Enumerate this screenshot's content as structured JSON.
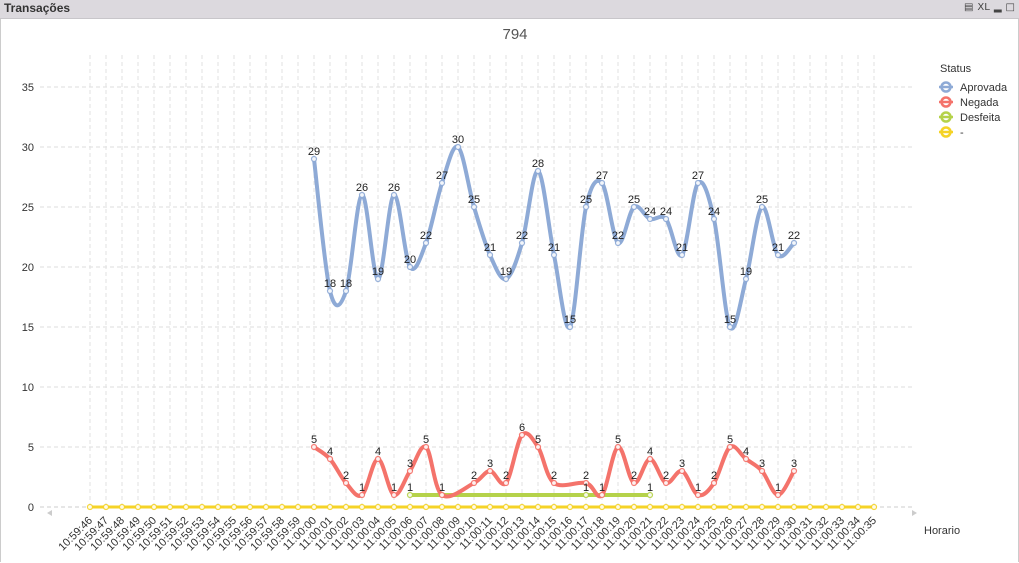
{
  "window": {
    "title": "Transações",
    "icons": [
      "print-icon",
      "xl-icon",
      "minimize-icon",
      "maximize-icon"
    ],
    "xl_label": "XL"
  },
  "chart_data": {
    "type": "line",
    "title": "794",
    "xlabel": "Horario",
    "ylabel": "",
    "ylim": [
      0,
      35
    ],
    "yticks": [
      0,
      5,
      10,
      15,
      20,
      25,
      30,
      35
    ],
    "grid": true,
    "legend": {
      "title": "Status",
      "placement": "top-right"
    },
    "categories": [
      "10:59:46",
      "10:59:47",
      "10:59:48",
      "10:59:49",
      "10:59:50",
      "10:59:51",
      "10:59:52",
      "10:59:53",
      "10:59:54",
      "10:59:55",
      "10:59:56",
      "10:59:57",
      "10:59:58",
      "10:59:59",
      "11:00:00",
      "11:00:01",
      "11:00:02",
      "11:00:03",
      "11:00:04",
      "11:00:05",
      "11:00:06",
      "11:00:07",
      "11:00:08",
      "11:00:09",
      "11:00:10",
      "11:00:11",
      "11:00:12",
      "11:00:13",
      "11:00:14",
      "11:00:15",
      "11:00:16",
      "11:00:17",
      "11:00:18",
      "11:00:19",
      "11:00:20",
      "11:00:21",
      "11:00:22",
      "11:00:23",
      "11:00:24",
      "11:00:25",
      "11:00:26",
      "11:00:27",
      "11:00:28",
      "11:00:29",
      "11:00:30",
      "11:00:31",
      "11:00:32",
      "11:00:33",
      "11:00:34",
      "11:00:35"
    ],
    "series": [
      {
        "name": "Aprovada",
        "color": "#8eaad6",
        "labels": true,
        "values": [
          null,
          null,
          null,
          null,
          null,
          null,
          null,
          null,
          null,
          null,
          null,
          null,
          null,
          null,
          29,
          18,
          18,
          26,
          19,
          26,
          20,
          22,
          27,
          30,
          25,
          21,
          19,
          22,
          28,
          21,
          15,
          25,
          27,
          22,
          25,
          24,
          24,
          21,
          27,
          24,
          15,
          19,
          25,
          21,
          22,
          null,
          null,
          null,
          null,
          null
        ]
      },
      {
        "name": "Negada",
        "color": "#f4736b",
        "labels": true,
        "values": [
          null,
          null,
          null,
          null,
          null,
          null,
          null,
          null,
          null,
          null,
          null,
          null,
          null,
          null,
          5,
          4,
          2,
          1,
          4,
          1,
          3,
          5,
          1,
          null,
          2,
          3,
          2,
          6,
          5,
          2,
          null,
          2,
          1,
          5,
          2,
          4,
          2,
          3,
          1,
          2,
          5,
          4,
          3,
          1,
          3,
          null,
          null,
          null,
          null,
          null
        ]
      },
      {
        "name": "Desfeita",
        "color": "#b5d24a",
        "labels": true,
        "values": [
          null,
          null,
          null,
          null,
          null,
          null,
          null,
          null,
          null,
          null,
          null,
          null,
          null,
          null,
          null,
          null,
          null,
          null,
          null,
          null,
          1,
          null,
          null,
          null,
          null,
          null,
          null,
          null,
          null,
          null,
          null,
          1,
          null,
          null,
          null,
          1,
          null,
          null,
          null,
          null,
          null,
          null,
          null,
          null,
          null,
          null,
          null,
          null,
          null,
          null
        ]
      },
      {
        "name": "-",
        "color": "#f5d327",
        "labels": false,
        "values": [
          0,
          0,
          0,
          0,
          0,
          0,
          0,
          0,
          0,
          0,
          0,
          0,
          0,
          0,
          0,
          0,
          0,
          0,
          0,
          0,
          0,
          0,
          0,
          0,
          0,
          0,
          0,
          0,
          0,
          0,
          0,
          0,
          0,
          0,
          0,
          0,
          0,
          0,
          0,
          0,
          0,
          0,
          0,
          0,
          0,
          0,
          0,
          0,
          0,
          0
        ]
      }
    ]
  }
}
